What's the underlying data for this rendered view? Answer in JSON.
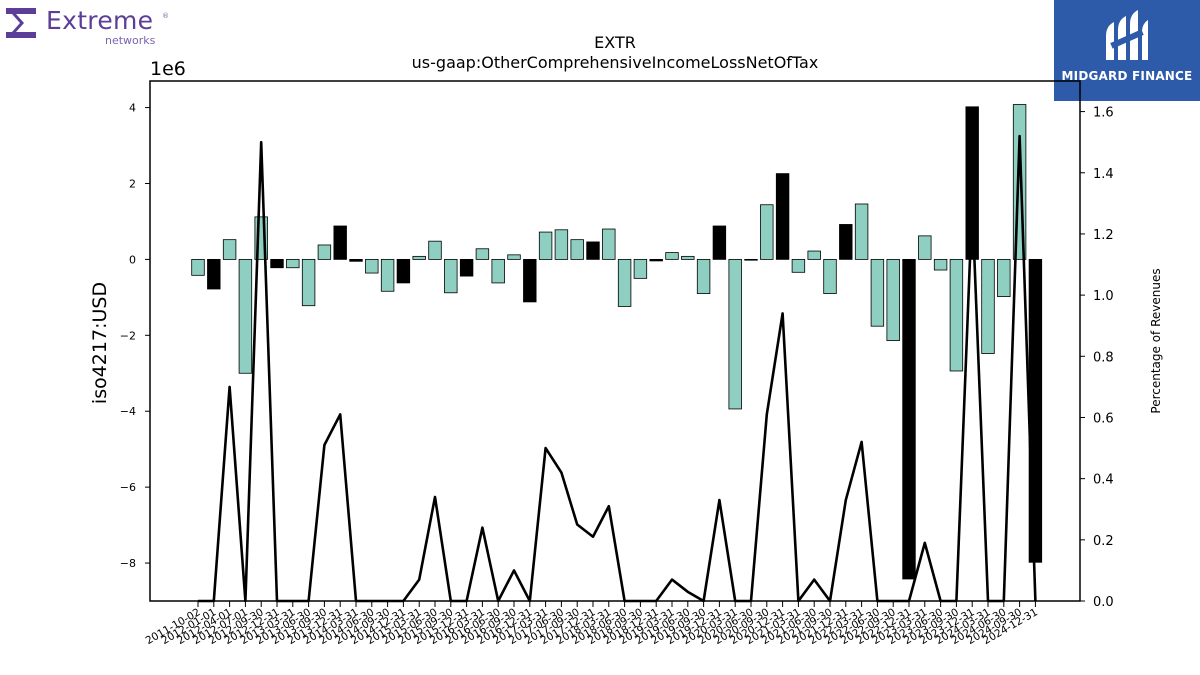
{
  "logo": {
    "company": "Extreme",
    "subline": "networks",
    "reg_mark": "®"
  },
  "brand": {
    "name": "MIDGARD FINANCE"
  },
  "colors": {
    "bar_fill": "#8ecfc2",
    "bar_highlight": "#000000",
    "line": "#000000",
    "brand_bg": "#2d5aa9",
    "logo_purple": "#5c3e98"
  },
  "chart_data": {
    "type": "bar",
    "title": "EXTR",
    "subtitle": "us-gaap:OtherComprehensiveIncomeLossNetOfTax",
    "ylabel": "iso4217:USD",
    "y_offset_label": "1e6",
    "y2label": "Percentage of Revenues",
    "ylim": [
      -9.0,
      4.7
    ],
    "y2lim": [
      0.0,
      1.7
    ],
    "yticks": [
      -8,
      -6,
      -4,
      -2,
      0,
      2,
      4
    ],
    "ytick_labels": [
      "−8",
      "−6",
      "−4",
      "−2",
      "0",
      "2",
      "4"
    ],
    "y2ticks": [
      0.0,
      0.2,
      0.4,
      0.6,
      0.8,
      1.0,
      1.2,
      1.4,
      1.6
    ],
    "y2tick_labels": [
      "0.0",
      "0.2",
      "0.4",
      "0.6",
      "0.8",
      "1.0",
      "1.2",
      "1.4",
      "1.6"
    ],
    "legend": "none",
    "grid": false,
    "x_tick_labels": [
      "2011-10-02",
      "2012-01-01",
      "2012-04-01",
      "2012-07-01",
      "2012-09-30",
      "2012-12-31",
      "2013-03-31",
      "2013-06-30",
      "2013-09-30",
      "2013-12-31",
      "2014-03-31",
      "2014-06-30",
      "2014-09-30",
      "2014-12-31",
      "2015-03-31",
      "2015-06-30",
      "2015-09-30",
      "2015-12-31",
      "2016-03-31",
      "2016-06-30",
      "2016-09-30",
      "2016-12-31",
      "2017-03-31",
      "2017-06-30",
      "2017-09-30",
      "2017-12-31",
      "2018-03-31",
      "2018-06-30",
      "2018-09-30",
      "2018-12-31",
      "2019-03-31",
      "2019-06-30",
      "2019-09-30",
      "2019-12-31",
      "2020-03-31",
      "2020-06-30",
      "2020-09-30",
      "2020-12-31",
      "2021-03-31",
      "2021-06-30",
      "2021-09-30",
      "2021-12-31",
      "2022-03-31",
      "2022-06-30",
      "2022-09-30",
      "2022-12-31",
      "2023-03-31",
      "2023-06-30",
      "2023-09-30",
      "2023-12-31",
      "2024-03-31",
      "2024-06-30",
      "2024-09-30",
      "2024-12-31"
    ],
    "bar_values": [
      -0.42,
      -0.78,
      0.52,
      -3.0,
      1.12,
      -0.22,
      -0.22,
      -1.22,
      0.38,
      0.88,
      -0.05,
      -0.36,
      -0.84,
      -0.62,
      0.08,
      0.48,
      -0.88,
      -0.44,
      0.28,
      -0.62,
      0.12,
      -1.12,
      0.72,
      0.78,
      0.52,
      0.46,
      0.8,
      -1.24,
      -0.5,
      -0.04,
      0.18,
      0.08,
      -0.9,
      0.88,
      -3.94,
      -0.02,
      1.44,
      2.26,
      -0.34,
      0.22,
      -0.9,
      0.92,
      1.46,
      -1.76,
      -2.14,
      -8.42,
      0.62,
      -0.28,
      -2.94,
      4.02,
      -2.48,
      -0.98,
      4.08,
      -7.98
    ],
    "bar_highlight": [
      false,
      true,
      false,
      false,
      false,
      true,
      false,
      false,
      false,
      true,
      true,
      false,
      false,
      true,
      false,
      false,
      false,
      true,
      false,
      false,
      false,
      true,
      false,
      false,
      false,
      true,
      false,
      false,
      false,
      true,
      false,
      false,
      false,
      true,
      false,
      false,
      false,
      true,
      false,
      false,
      false,
      true,
      false,
      false,
      false,
      true,
      false,
      false,
      false,
      true,
      false,
      false,
      false,
      true
    ],
    "line_values": [
      0.0,
      0.0,
      0.7,
      0.0,
      1.5,
      0.0,
      0.0,
      0.0,
      0.51,
      0.61,
      0.0,
      0.0,
      0.0,
      0.0,
      0.07,
      0.34,
      0.0,
      0.0,
      0.24,
      0.0,
      0.1,
      0.0,
      0.5,
      0.42,
      0.25,
      0.21,
      0.31,
      0.0,
      0.0,
      0.0,
      0.07,
      0.03,
      0.0,
      0.33,
      0.0,
      0.0,
      0.61,
      0.94,
      0.0,
      0.07,
      0.0,
      0.33,
      0.52,
      0.0,
      0.0,
      0.0,
      0.19,
      0.0,
      0.0,
      1.3,
      0.0,
      0.0,
      1.52,
      0.0
    ]
  }
}
